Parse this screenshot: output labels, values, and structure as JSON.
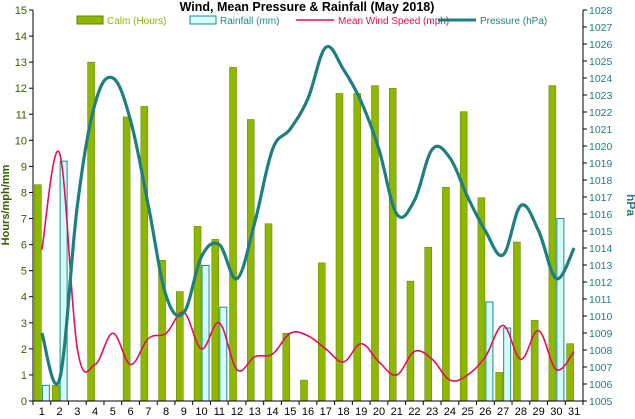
{
  "chart_data": {
    "type": "bar",
    "title": "Wind, Mean Pressure & Rainfall (May 2018)",
    "ylabel_left": "Hours/mph/mm",
    "ylabel_right": "hPa",
    "ylim_left": [
      0,
      15
    ],
    "ylim_right": [
      1005,
      1028
    ],
    "yticks_left": [
      0,
      1,
      2,
      3,
      4,
      5,
      6,
      7,
      8,
      9,
      10,
      11,
      12,
      13,
      14,
      15
    ],
    "yticks_right": [
      1005,
      1006,
      1007,
      1008,
      1009,
      1010,
      1011,
      1012,
      1013,
      1014,
      1015,
      1016,
      1017,
      1018,
      1019,
      1020,
      1021,
      1022,
      1023,
      1024,
      1025,
      1026,
      1027,
      1028
    ],
    "categories": [
      "1",
      "2",
      "3",
      "4",
      "5",
      "6",
      "7",
      "8",
      "9",
      "10",
      "11",
      "12",
      "13",
      "14",
      "15",
      "16",
      "17",
      "18",
      "19",
      "20",
      "21",
      "22",
      "23",
      "24",
      "25",
      "26",
      "27",
      "28",
      "29",
      "30",
      "31"
    ],
    "grid": false,
    "legend_position": "top",
    "series": [
      {
        "name": "Calm (Hours)",
        "type": "bar",
        "axis": "left",
        "color": "#8db700",
        "values": [
          8.3,
          0.6,
          0,
          13.0,
          0,
          10.9,
          11.3,
          5.4,
          4.2,
          6.7,
          6.2,
          12.8,
          10.8,
          6.8,
          2.6,
          0.8,
          5.3,
          11.8,
          11.8,
          12.1,
          12.0,
          4.6,
          5.9,
          8.2,
          11.1,
          7.8,
          1.1,
          6.1,
          3.1,
          12.1,
          2.2
        ]
      },
      {
        "name": "Rainfall (mm)",
        "type": "bar",
        "axis": "left",
        "color": "#d6fbfb",
        "stroke": "#1e8a8a",
        "values": [
          0.6,
          9.2,
          0,
          0,
          0,
          0,
          0,
          0,
          0,
          5.2,
          3.6,
          0,
          0,
          0,
          0,
          0,
          0,
          0,
          0,
          0,
          0,
          0,
          0,
          0,
          0,
          3.8,
          2.8,
          0,
          0,
          7.0,
          0
        ]
      },
      {
        "name": "Mean Wind Speed (mph)",
        "type": "line",
        "axis": "left",
        "color": "#e0105a",
        "values": [
          5.8,
          9.5,
          2.0,
          1.4,
          2.6,
          1.4,
          2.4,
          2.6,
          3.4,
          2.0,
          3.0,
          1.2,
          1.7,
          1.8,
          2.6,
          2.5,
          2.0,
          1.5,
          2.2,
          1.5,
          1.0,
          1.9,
          1.6,
          0.8,
          1.0,
          1.7,
          2.9,
          1.6,
          2.7,
          1.2,
          1.9
        ]
      },
      {
        "name": "Pressure (hPa)",
        "type": "line",
        "axis": "right",
        "color": "#1f7f80",
        "values": [
          1009,
          1006.3,
          1016.5,
          1022.5,
          1024,
          1021.5,
          1016.5,
          1011.2,
          1010.2,
          1013.5,
          1014.2,
          1012.2,
          1015.5,
          1019.8,
          1021.0,
          1022.8,
          1025.8,
          1024.5,
          1022.6,
          1019.8,
          1016.0,
          1016.8,
          1019.8,
          1019.3,
          1017.0,
          1015.0,
          1013.6,
          1016.5,
          1015.0,
          1012.2,
          1014.0
        ]
      }
    ]
  }
}
